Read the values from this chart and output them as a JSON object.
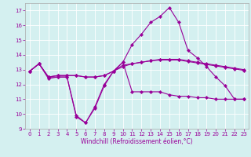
{
  "xlabel": "Windchill (Refroidissement éolien,°C)",
  "x": [
    0,
    1,
    2,
    3,
    4,
    5,
    6,
    7,
    8,
    9,
    10,
    11,
    12,
    13,
    14,
    15,
    16,
    17,
    18,
    19,
    20,
    21,
    22,
    23
  ],
  "series": [
    [
      12.9,
      13.4,
      12.5,
      12.5,
      12.5,
      9.8,
      9.4,
      10.4,
      11.9,
      12.9,
      13.5,
      11.5,
      11.5,
      11.5,
      11.5,
      11.3,
      11.2,
      11.2,
      11.1,
      11.1,
      11.0,
      11.0,
      11.0,
      11.0
    ],
    [
      12.9,
      13.4,
      12.4,
      12.5,
      12.5,
      9.9,
      9.4,
      10.5,
      12.0,
      12.9,
      13.5,
      14.7,
      15.4,
      16.2,
      16.6,
      17.2,
      16.2,
      14.3,
      13.8,
      13.2,
      12.5,
      11.9,
      11.0,
      11.0
    ],
    [
      12.9,
      13.4,
      12.5,
      12.6,
      12.6,
      12.6,
      12.5,
      12.5,
      12.6,
      12.9,
      13.3,
      13.4,
      13.5,
      13.6,
      13.7,
      13.7,
      13.7,
      13.6,
      13.5,
      13.4,
      13.3,
      13.2,
      13.1,
      13.0
    ],
    [
      12.9,
      13.4,
      12.5,
      12.6,
      12.6,
      12.6,
      12.5,
      12.5,
      12.6,
      12.9,
      13.2,
      13.4,
      13.5,
      13.6,
      13.65,
      13.65,
      13.65,
      13.55,
      13.45,
      13.35,
      13.25,
      13.15,
      13.05,
      12.95
    ]
  ],
  "line_color": "#990099",
  "bg_color": "#d4f0f0",
  "grid_color": "#ffffff",
  "ylim": [
    9,
    17.5
  ],
  "yticks": [
    9,
    10,
    11,
    12,
    13,
    14,
    15,
    16,
    17
  ],
  "xlim": [
    -0.5,
    23.5
  ],
  "xticks": [
    0,
    1,
    2,
    3,
    4,
    5,
    6,
    7,
    8,
    9,
    10,
    11,
    12,
    13,
    14,
    15,
    16,
    17,
    18,
    19,
    20,
    21,
    22,
    23
  ],
  "tick_fontsize": 5.0,
  "xlabel_fontsize": 5.5,
  "linewidth": 0.8,
  "markersize": 2.2
}
